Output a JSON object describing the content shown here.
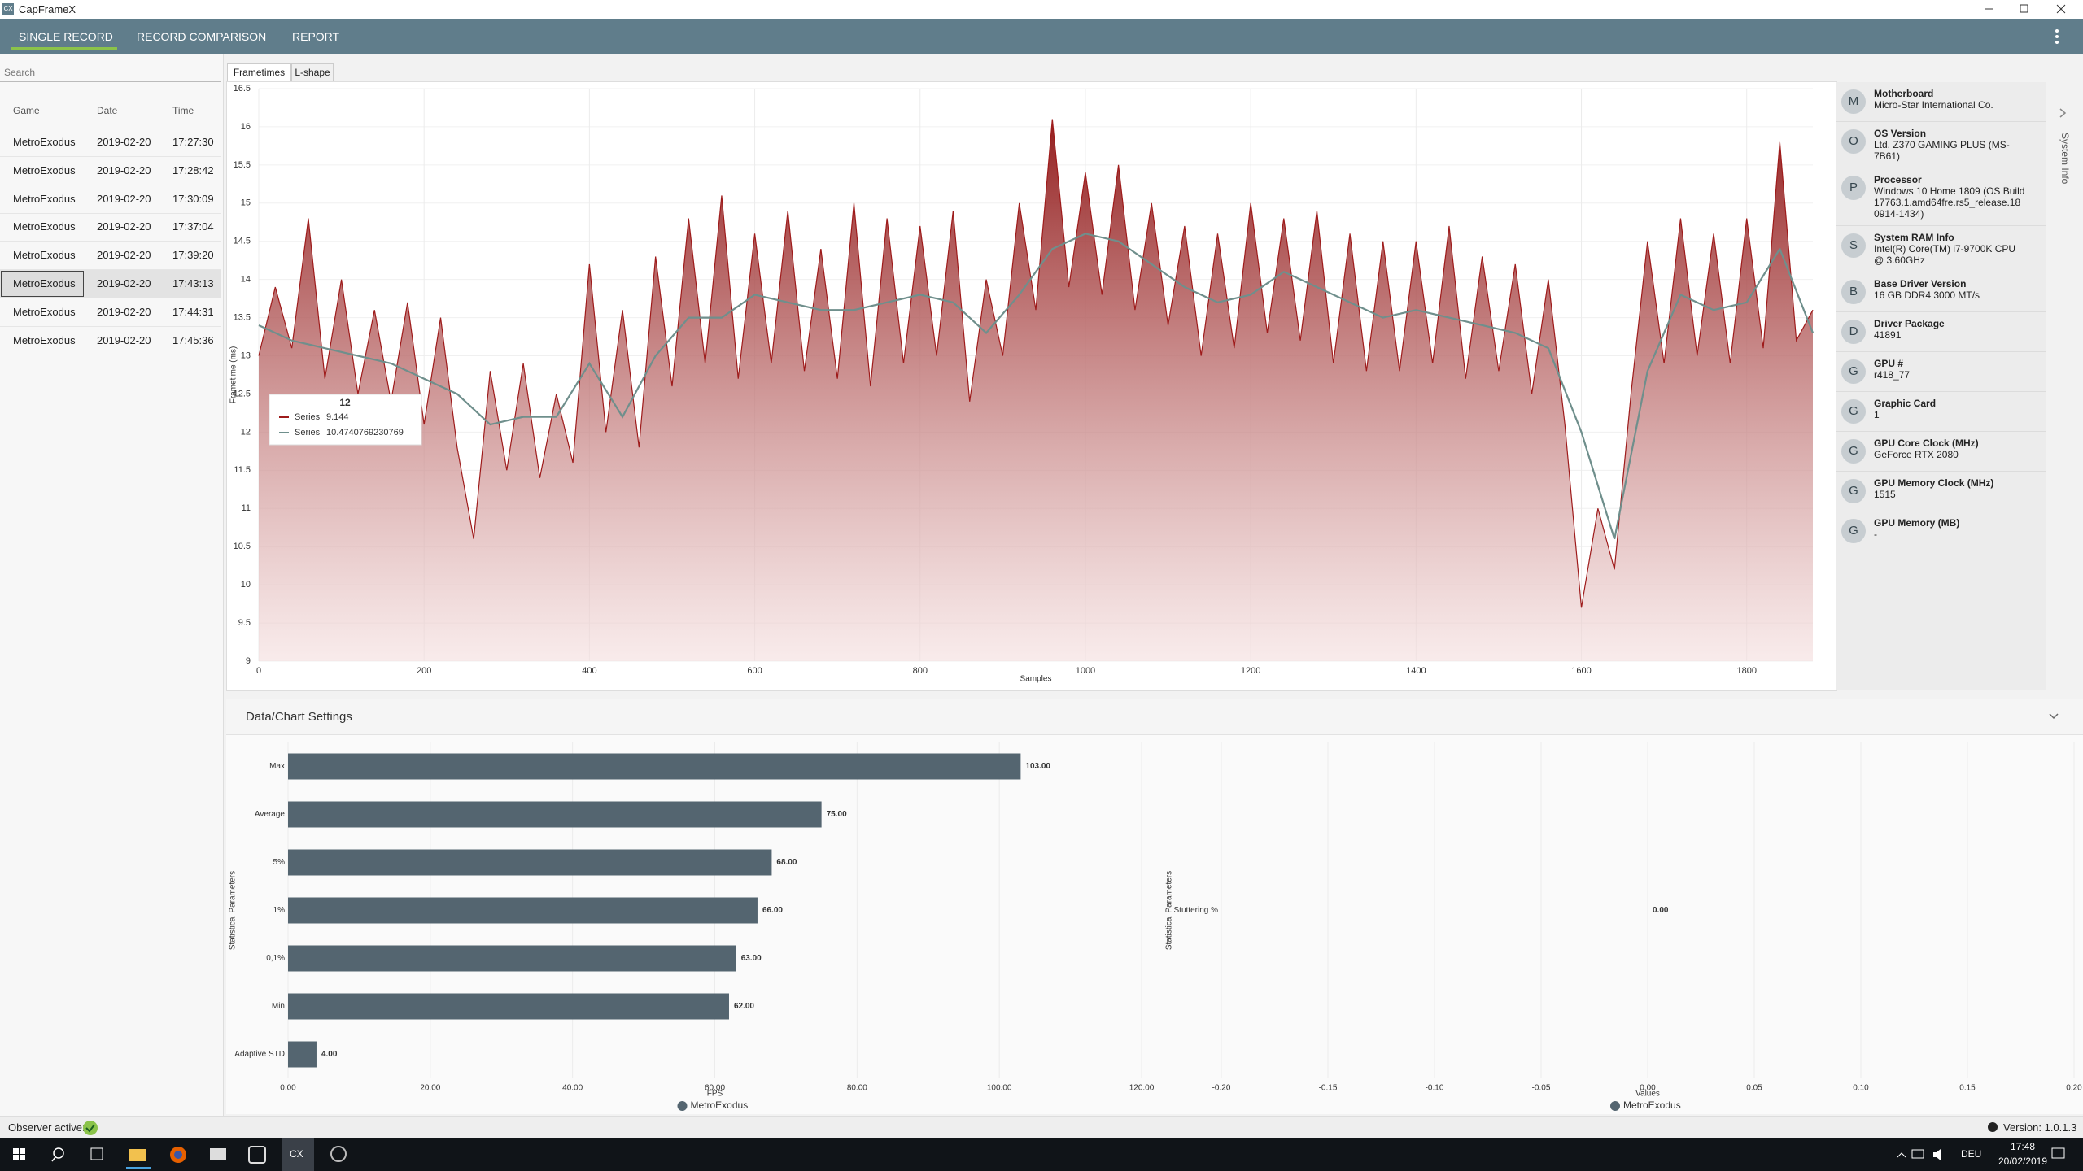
{
  "window": {
    "title": "CapFrameX",
    "icon": "CX"
  },
  "nav": {
    "tabs": [
      "SINGLE RECORD",
      "RECORD COMPARISON",
      "REPORT"
    ]
  },
  "sidebar": {
    "search": "Search",
    "columns": [
      "Game",
      "Date",
      "Time"
    ],
    "rows": [
      [
        "MetroExodus",
        "2019-02-20",
        "17:27:30"
      ],
      [
        "MetroExodus",
        "2019-02-20",
        "17:28:42"
      ],
      [
        "MetroExodus",
        "2019-02-20",
        "17:30:09"
      ],
      [
        "MetroExodus",
        "2019-02-20",
        "17:37:04"
      ],
      [
        "MetroExodus",
        "2019-02-20",
        "17:39:20"
      ],
      [
        "MetroExodus",
        "2019-02-20",
        "17:43:13"
      ],
      [
        "MetroExodus",
        "2019-02-20",
        "17:44:31"
      ],
      [
        "MetroExodus",
        "2019-02-20",
        "17:45:36"
      ]
    ]
  },
  "chart_tabs": [
    "Frametimes",
    "L-shape"
  ],
  "system_info": {
    "title": "System Info",
    "items": [
      {
        "icon": "M",
        "label": "Motherboard",
        "value": "Micro-Star International Co."
      },
      {
        "icon": "O",
        "label": "OS Version",
        "value": "Ltd. Z370 GAMING PLUS (MS-7B61)"
      },
      {
        "icon": "P",
        "label": "Processor",
        "value": "Windows 10 Home 1809 (OS Build 17763.1.amd64fre.rs5_release.18 0914-1434)"
      },
      {
        "icon": "S",
        "label": "System RAM Info",
        "value": "Intel(R) Core(TM) i7-9700K CPU @ 3.60GHz"
      },
      {
        "icon": "B",
        "label": "Base Driver Version",
        "value": "16 GB DDR4 3000 MT/s"
      },
      {
        "icon": "D",
        "label": "Driver Package",
        "value": "41891"
      },
      {
        "icon": "G",
        "label": "GPU #",
        "value": "r418_77"
      },
      {
        "icon": "G",
        "label": "Graphic Card",
        "value": "1"
      },
      {
        "icon": "G",
        "label": "GPU Core Clock (MHz)",
        "value": "GeForce RTX 2080"
      },
      {
        "icon": "G",
        "label": "GPU Memory Clock (MHz)",
        "value": "1515"
      },
      {
        "icon": "G",
        "label": "GPU Memory (MB)",
        "value": "-"
      }
    ]
  },
  "settings": {
    "title": "Data/Chart Settings"
  },
  "status": {
    "observer": "Observer active:",
    "version": "Version: 1.0.1.3"
  },
  "taskbar": {
    "app": "CX",
    "language": "DEU",
    "time": "17:48",
    "date": "20/02/2019"
  },
  "chart_data": [
    {
      "type": "line",
      "x_label": "Samples",
      "y_label": "Frametime (ms)",
      "grid": true,
      "xlim": [
        0,
        1880
      ],
      "xticks": [
        0,
        200,
        400,
        600,
        800,
        1000,
        1200,
        1400,
        1600,
        1800
      ],
      "ylim": [
        9,
        16.5
      ],
      "yticks": [
        9,
        9.5,
        10,
        10.5,
        11,
        11.5,
        12,
        12.5,
        13,
        13.5,
        14,
        14.5,
        15,
        15.5,
        16,
        16.5
      ],
      "series": [
        {
          "name": "Series",
          "color": "#9e1b1b",
          "area": true,
          "x": [
            0,
            20,
            40,
            60,
            80,
            100,
            120,
            140,
            160,
            180,
            200,
            220,
            240,
            260,
            280,
            300,
            320,
            340,
            360,
            380,
            400,
            420,
            440,
            460,
            480,
            500,
            520,
            540,
            560,
            580,
            600,
            620,
            640,
            660,
            680,
            700,
            720,
            740,
            760,
            780,
            800,
            820,
            840,
            860,
            880,
            900,
            920,
            940,
            960,
            980,
            1000,
            1020,
            1040,
            1060,
            1080,
            1100,
            1120,
            1140,
            1160,
            1180,
            1200,
            1220,
            1240,
            1260,
            1280,
            1300,
            1320,
            1340,
            1360,
            1380,
            1400,
            1420,
            1440,
            1460,
            1480,
            1500,
            1520,
            1540,
            1560,
            1580,
            1600,
            1620,
            1640,
            1660,
            1680,
            1700,
            1720,
            1740,
            1760,
            1780,
            1800,
            1820,
            1840,
            1860,
            1880
          ],
          "values": [
            13.0,
            13.9,
            13.1,
            14.8,
            12.7,
            14.0,
            12.5,
            13.6,
            12.4,
            13.7,
            12.1,
            13.5,
            11.8,
            10.6,
            12.8,
            11.5,
            12.9,
            11.4,
            12.5,
            11.6,
            14.2,
            12.0,
            13.6,
            11.8,
            14.3,
            12.6,
            14.8,
            12.9,
            15.1,
            12.7,
            14.6,
            12.9,
            14.9,
            12.8,
            14.4,
            12.7,
            15.0,
            12.6,
            14.8,
            12.9,
            14.7,
            13.0,
            14.9,
            12.4,
            14.0,
            13.0,
            15.0,
            13.6,
            16.1,
            13.9,
            15.4,
            13.8,
            15.5,
            13.6,
            15.0,
            13.4,
            14.7,
            13.0,
            14.6,
            13.1,
            15.0,
            13.3,
            14.8,
            13.2,
            14.9,
            12.9,
            14.6,
            12.8,
            14.5,
            12.8,
            14.5,
            12.9,
            14.7,
            12.7,
            14.3,
            12.8,
            14.2,
            12.5,
            14.0,
            12.1,
            9.7,
            11.0,
            10.2,
            12.5,
            14.5,
            12.9,
            14.8,
            13.0,
            14.6,
            12.9,
            14.8,
            13.1,
            15.8,
            13.2,
            13.6
          ]
        },
        {
          "name": "Series",
          "color": "#6f8f8c",
          "x": [
            0,
            40,
            80,
            120,
            160,
            200,
            240,
            280,
            320,
            360,
            400,
            440,
            480,
            520,
            560,
            600,
            640,
            680,
            720,
            760,
            800,
            840,
            880,
            920,
            960,
            1000,
            1040,
            1080,
            1120,
            1160,
            1200,
            1240,
            1280,
            1320,
            1360,
            1400,
            1440,
            1480,
            1520,
            1560,
            1600,
            1640,
            1680,
            1720,
            1760,
            1800,
            1840,
            1880
          ],
          "values": [
            13.4,
            13.2,
            13.1,
            13.0,
            12.9,
            12.7,
            12.5,
            12.1,
            12.2,
            12.2,
            12.9,
            12.2,
            13.0,
            13.5,
            13.5,
            13.8,
            13.7,
            13.6,
            13.6,
            13.7,
            13.8,
            13.7,
            13.3,
            13.8,
            14.4,
            14.6,
            14.5,
            14.2,
            13.9,
            13.7,
            13.8,
            14.1,
            13.9,
            13.7,
            13.5,
            13.6,
            13.5,
            13.4,
            13.3,
            13.1,
            12.0,
            10.6,
            12.8,
            13.8,
            13.6,
            13.7,
            14.4,
            13.3
          ]
        }
      ],
      "tooltip": {
        "x": 12,
        "values": [
          9.144,
          10.4740769230769
        ]
      }
    },
    {
      "type": "barh",
      "x_label": "FPS",
      "y_label": "Statistical Parameters",
      "grid": true,
      "categories": [
        "Max",
        "Average",
        "5%",
        "1%",
        "0,1%",
        "Min",
        "Adaptive STD"
      ],
      "series": [
        {
          "name": "MetroExodus",
          "color": "#546570",
          "values": [
            103,
            75,
            68,
            66,
            63,
            62,
            4
          ],
          "value_labels": [
            "103.00",
            "75.00",
            "68.00",
            "66.00",
            "63.00",
            "62.00",
            "4.00"
          ]
        }
      ],
      "xlim": [
        0,
        120
      ],
      "xticks": [
        {
          "value": 0,
          "label": "0.00"
        },
        {
          "value": 20,
          "label": "20.00"
        },
        {
          "value": 40,
          "label": "40.00"
        },
        {
          "value": 60,
          "label": "60.00"
        },
        {
          "value": 80,
          "label": "80.00"
        },
        {
          "value": 100,
          "label": "100.00"
        },
        {
          "value": 120,
          "label": "120.00"
        }
      ]
    },
    {
      "type": "barh",
      "x_label": "Values",
      "y_label": "Statistical Parameters",
      "grid": true,
      "categories": [
        "Stuttering %"
      ],
      "series": [
        {
          "name": "MetroExodus",
          "color": "#546570",
          "values": [
            0
          ],
          "value_labels": [
            "0.00"
          ]
        }
      ],
      "xlim": [
        -0.2,
        0.2
      ],
      "xticks": [
        {
          "value": -0.2,
          "label": "-0.20"
        },
        {
          "value": -0.15,
          "label": "-0.15"
        },
        {
          "value": -0.1,
          "label": "-0.10"
        },
        {
          "value": -0.05,
          "label": "-0.05"
        },
        {
          "value": 0,
          "label": "0.00"
        },
        {
          "value": 0.05,
          "label": "0.05"
        },
        {
          "value": 0.1,
          "label": "0.10"
        },
        {
          "value": 0.15,
          "label": "0.15"
        },
        {
          "value": 0.2,
          "label": "0.20"
        }
      ]
    }
  ]
}
